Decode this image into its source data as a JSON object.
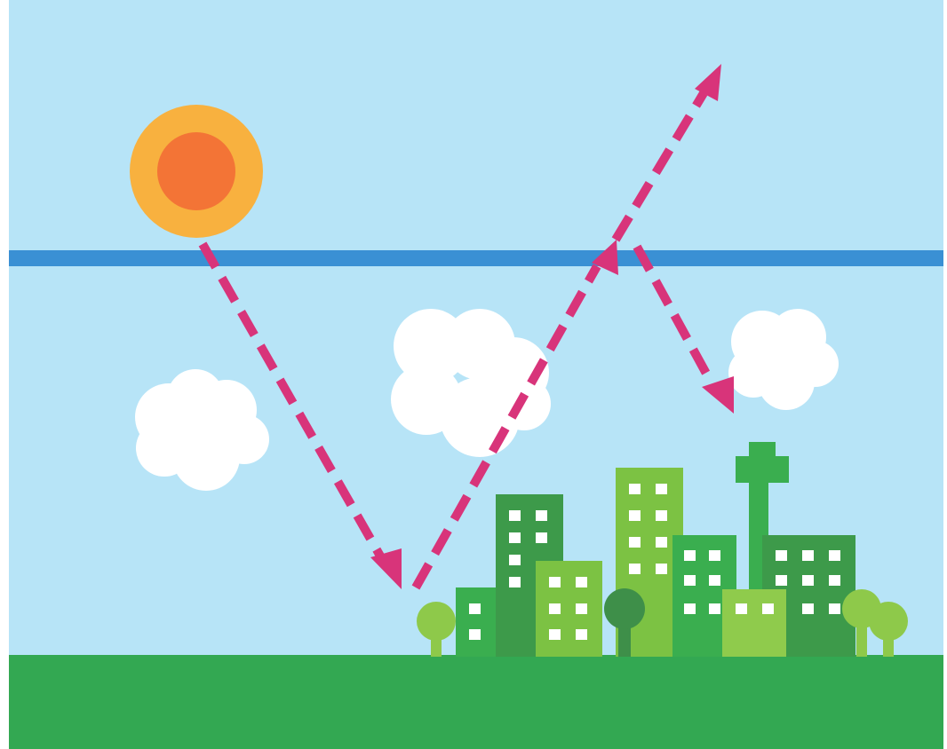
{
  "scene": {
    "elements": [
      "sky",
      "sun",
      "atmosphere-layer",
      "clouds",
      "city-buildings",
      "trees",
      "ground",
      "light-path-arrows"
    ],
    "colors": {
      "sky": "#b7e4f7",
      "atmosphere_band": "#3a90d4",
      "sun_outer": "#f8b13f",
      "sun_inner": "#f37436",
      "cloud": "#ffffff",
      "arrow": "#d8347a",
      "ground": "#33a852",
      "building_dark": "#3d9a4a",
      "building_mid": "#3aae4f",
      "building_light": "#7cc243",
      "building_pale": "#8fcb4c",
      "window": "#ffffff",
      "tree_light": "#8ec94a",
      "tree_dark": "#3e8f49"
    },
    "arrows": [
      {
        "from": "sun",
        "to": "city",
        "direction": "down",
        "style": "dashed"
      },
      {
        "from": "city",
        "to": "atmosphere",
        "direction": "up",
        "style": "dashed"
      },
      {
        "from": "atmosphere",
        "to": "space",
        "direction": "up",
        "style": "dashed"
      },
      {
        "from": "atmosphere",
        "to": "ground",
        "direction": "down",
        "style": "dashed"
      }
    ]
  }
}
